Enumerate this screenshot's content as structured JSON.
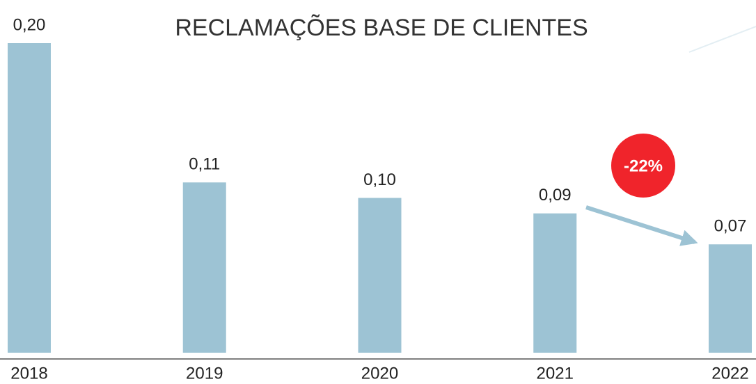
{
  "chart_data": {
    "type": "bar",
    "title": "RECLAMAÇÕES BASE DE CLIENTES",
    "categories": [
      "2018",
      "2019",
      "2020",
      "2021",
      "2022"
    ],
    "values": [
      0.2,
      0.11,
      0.1,
      0.09,
      0.07
    ],
    "value_labels": [
      "0,20",
      "0,11",
      "0,10",
      "0,09",
      "0,07"
    ],
    "color": "#9dc3d4",
    "ylim": [
      0,
      0.2
    ],
    "annotation": "-22%"
  }
}
